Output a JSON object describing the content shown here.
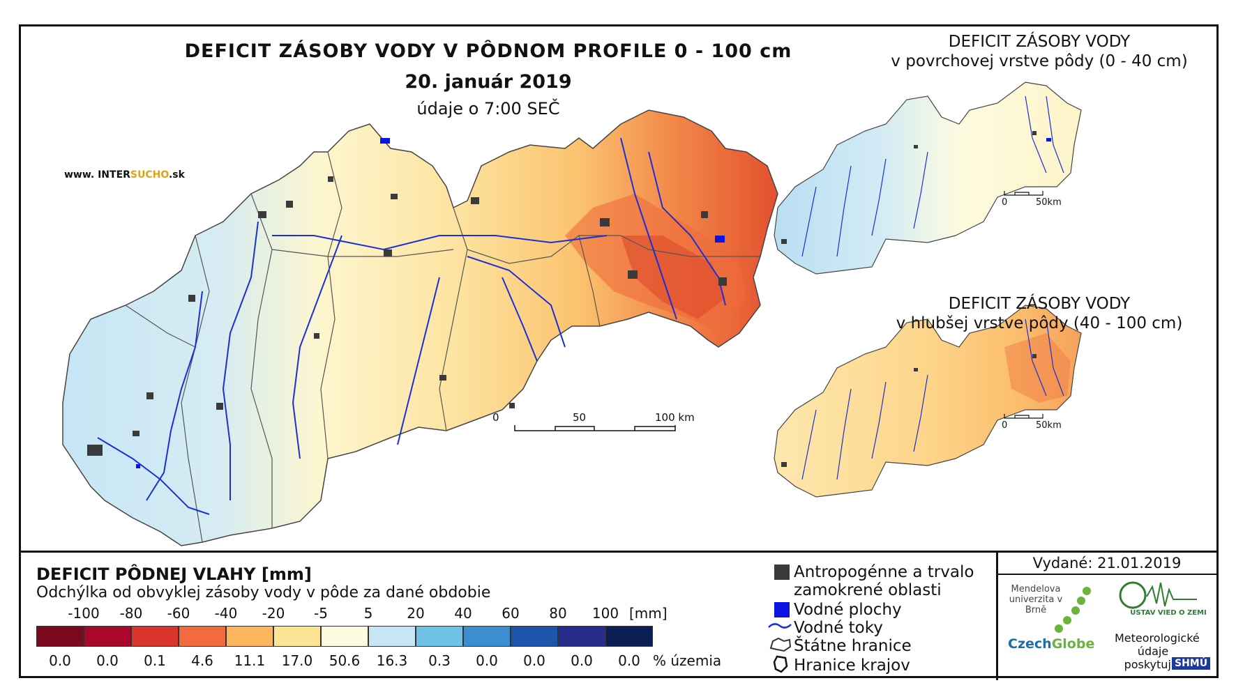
{
  "main_map": {
    "title": "DEFICIT ZÁSOBY VODY V PÔDNOM PROFILE 0 - 100 cm",
    "date": "20. január 2019",
    "time": "údaje o 7:00 SEČ",
    "website_prefix": "www. INTER",
    "website_accent": "SUCHO",
    "website_suffix": ".sk",
    "scale_labels": [
      "0",
      "50",
      "100 km"
    ]
  },
  "inset_top": {
    "title_line1": "DEFICIT ZÁSOBY VODY",
    "title_line2": "v povrchovej vrstve pôdy (0 - 40 cm)",
    "scale_labels": [
      "0",
      "50km"
    ]
  },
  "inset_bottom": {
    "title_line1": "DEFICIT ZÁSOBY VODY",
    "title_line2": "v hlubšej vrstve pôdy (40 - 100 cm)",
    "scale_labels": [
      "0",
      "50km"
    ]
  },
  "legend": {
    "title": "DEFICIT PÔDNEJ VLAHY [mm]",
    "subtitle": "Odchýlka od obvyklej zásoby vody v pôde za dané obdobie",
    "tick_labels": [
      "-100",
      "-80",
      "-60",
      "-40",
      "-20",
      "-5",
      "5",
      "20",
      "40",
      "60",
      "80",
      "100"
    ],
    "unit": "[mm]",
    "classes": [
      {
        "color": "#7b0a1e",
        "percent": "0.0"
      },
      {
        "color": "#a9082a",
        "percent": "0.0"
      },
      {
        "color": "#d9352a",
        "percent": "0.1"
      },
      {
        "color": "#f26b3e",
        "percent": "4.6"
      },
      {
        "color": "#fbb65e",
        "percent": "11.1"
      },
      {
        "color": "#fde494",
        "percent": "17.0"
      },
      {
        "color": "#fdfbe0",
        "percent": "50.6"
      },
      {
        "color": "#c6e6f5",
        "percent": "16.3"
      },
      {
        "color": "#6fc1e6",
        "percent": "0.3"
      },
      {
        "color": "#3b8fd1",
        "percent": "0.0"
      },
      {
        "color": "#1e55ab",
        "percent": "0.0"
      },
      {
        "color": "#262d8c",
        "percent": "0.0"
      },
      {
        "color": "#0b1f55",
        "percent": "0.0"
      }
    ],
    "percent_unit": "% územia"
  },
  "symbols": {
    "urban_line1": "Antropogénne a trvalo",
    "urban_line2": "zamokrené oblasti",
    "water_bodies": "Vodné plochy",
    "rivers": "Vodné toky",
    "state_border": "Štátne hranice",
    "region_border": "Hranice krajov"
  },
  "credits": {
    "issued": "Vydané: 21.01.2019",
    "mendel": "Mendelova univerzita v Brně",
    "czechglobe_a": "Czech",
    "czechglobe_b": "Globe",
    "uvgz": "ÚSTAV VIED O ZEMI",
    "meteo": "Meteorologické údaje poskytujú:",
    "shmu": "SHMÚ"
  },
  "colors": {
    "urban": "#3a3a3a",
    "water": "#0a14e0",
    "river": "#1a2fd8",
    "border": "#444444"
  }
}
